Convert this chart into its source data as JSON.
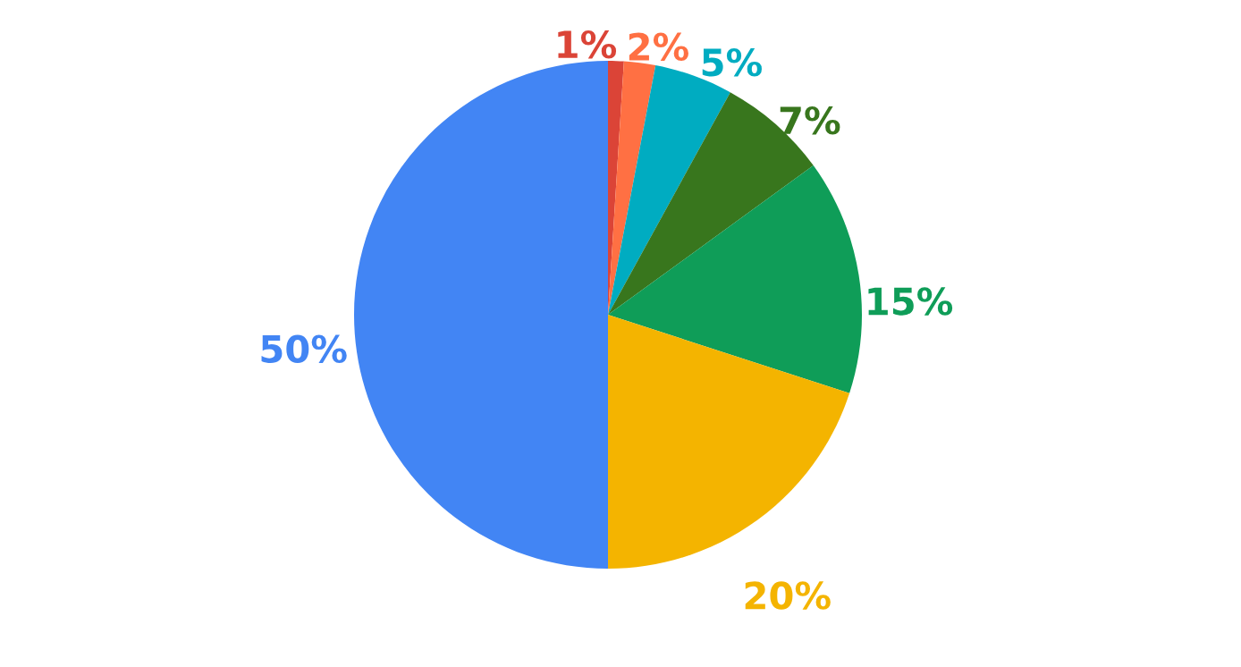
{
  "chart_data": {
    "type": "pie",
    "categories": [
      null,
      null,
      null,
      null,
      null,
      null,
      null
    ],
    "values": [
      1,
      2,
      5,
      7,
      15,
      20,
      50
    ],
    "colors": [
      "#db4437",
      "#ff7043",
      "#00acc1",
      "#38761d",
      "#0f9d58",
      "#f4b400",
      "#4285f4"
    ],
    "value_labels": [
      "1%",
      "2%",
      "5%",
      "7%",
      "15%",
      "20%",
      "50%"
    ]
  }
}
